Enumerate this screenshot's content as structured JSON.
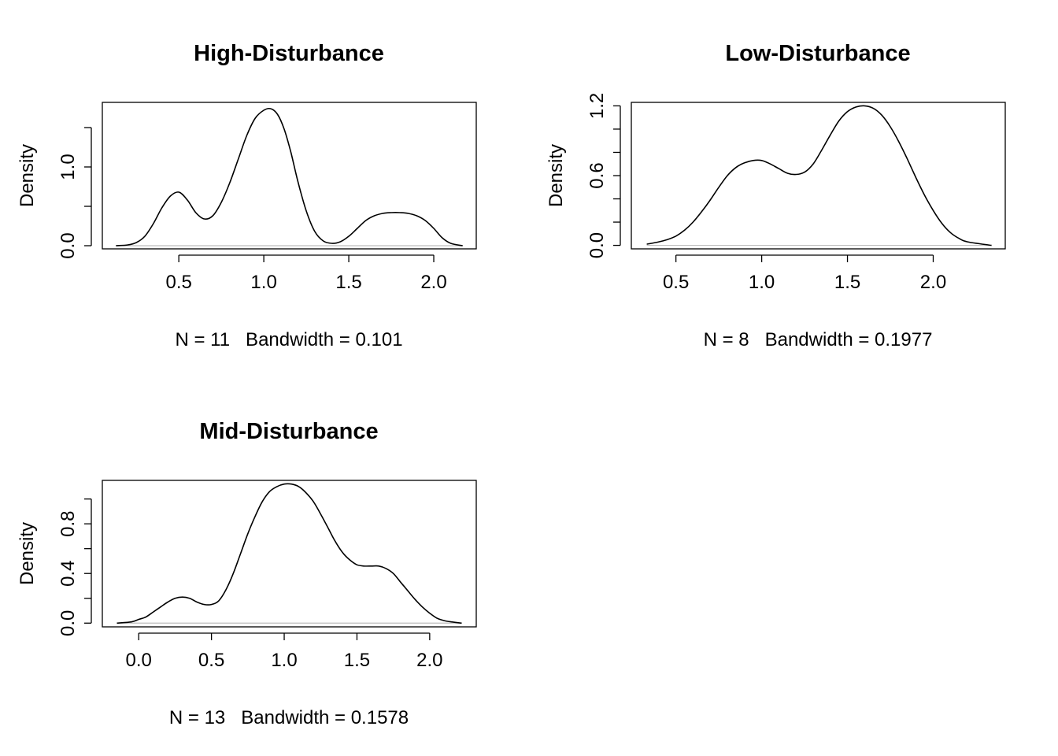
{
  "chart_data": [
    {
      "type": "line",
      "title": "High-Disturbance",
      "xlabel": "N = 11   Bandwidth = 0.101",
      "ylabel": "Density",
      "xlim": [
        0.05,
        2.25
      ],
      "ylim": [
        -0.04,
        1.82
      ],
      "x_ticks": [
        {
          "value": 0.5,
          "label": "0.5"
        },
        {
          "value": 1.0,
          "label": "1.0"
        },
        {
          "value": 1.5,
          "label": "1.5"
        },
        {
          "value": 2.0,
          "label": "2.0"
        }
      ],
      "y_ticks": [
        {
          "value": 0.0,
          "label": "0.0"
        },
        {
          "value": 0.5,
          "label": ""
        },
        {
          "value": 1.0,
          "label": "1.0"
        },
        {
          "value": 1.5,
          "label": ""
        }
      ],
      "x": [
        0.13,
        0.2,
        0.25,
        0.3,
        0.35,
        0.4,
        0.45,
        0.5,
        0.55,
        0.6,
        0.65,
        0.7,
        0.75,
        0.8,
        0.85,
        0.9,
        0.95,
        1.0,
        1.04,
        1.08,
        1.12,
        1.16,
        1.2,
        1.25,
        1.3,
        1.35,
        1.4,
        1.45,
        1.5,
        1.55,
        1.6,
        1.65,
        1.7,
        1.75,
        1.8,
        1.85,
        1.9,
        1.95,
        2.0,
        2.05,
        2.1,
        2.17
      ],
      "y": [
        0.0,
        0.01,
        0.04,
        0.12,
        0.28,
        0.48,
        0.63,
        0.68,
        0.58,
        0.42,
        0.34,
        0.38,
        0.55,
        0.8,
        1.1,
        1.4,
        1.62,
        1.72,
        1.74,
        1.67,
        1.48,
        1.18,
        0.82,
        0.44,
        0.18,
        0.06,
        0.03,
        0.05,
        0.12,
        0.22,
        0.32,
        0.38,
        0.41,
        0.42,
        0.42,
        0.41,
        0.38,
        0.32,
        0.22,
        0.1,
        0.03,
        0.0
      ]
    },
    {
      "type": "line",
      "title": "Low-Disturbance",
      "xlabel": "N = 8   Bandwidth = 0.1977",
      "ylabel": "Density",
      "xlim": [
        0.24,
        2.42
      ],
      "ylim": [
        -0.03,
        1.23
      ],
      "x_ticks": [
        {
          "value": 0.5,
          "label": "0.5"
        },
        {
          "value": 1.0,
          "label": "1.0"
        },
        {
          "value": 1.5,
          "label": "1.5"
        },
        {
          "value": 2.0,
          "label": "2.0"
        }
      ],
      "y_ticks": [
        {
          "value": 0.0,
          "label": "0.0"
        },
        {
          "value": 0.2,
          "label": ""
        },
        {
          "value": 0.4,
          "label": ""
        },
        {
          "value": 0.6,
          "label": "0.6"
        },
        {
          "value": 0.8,
          "label": ""
        },
        {
          "value": 1.0,
          "label": ""
        },
        {
          "value": 1.2,
          "label": "1.2"
        }
      ],
      "x": [
        0.33,
        0.4,
        0.45,
        0.5,
        0.55,
        0.6,
        0.65,
        0.7,
        0.75,
        0.8,
        0.85,
        0.9,
        0.95,
        1.0,
        1.05,
        1.1,
        1.15,
        1.2,
        1.25,
        1.3,
        1.35,
        1.4,
        1.45,
        1.5,
        1.55,
        1.6,
        1.65,
        1.7,
        1.75,
        1.8,
        1.85,
        1.9,
        1.95,
        2.0,
        2.05,
        2.1,
        2.15,
        2.2,
        2.34
      ],
      "y": [
        0.01,
        0.03,
        0.05,
        0.08,
        0.13,
        0.2,
        0.29,
        0.39,
        0.5,
        0.6,
        0.67,
        0.71,
        0.73,
        0.73,
        0.7,
        0.66,
        0.62,
        0.61,
        0.63,
        0.7,
        0.82,
        0.95,
        1.07,
        1.15,
        1.19,
        1.2,
        1.18,
        1.12,
        1.02,
        0.89,
        0.74,
        0.58,
        0.43,
        0.3,
        0.19,
        0.11,
        0.06,
        0.03,
        0.0
      ]
    },
    {
      "type": "line",
      "title": "Mid-Disturbance",
      "xlabel": "N = 13   Bandwidth = 0.1578",
      "ylabel": "Density",
      "xlim": [
        -0.25,
        2.32
      ],
      "ylim": [
        -0.03,
        1.15
      ],
      "x_ticks": [
        {
          "value": 0.0,
          "label": "0.0"
        },
        {
          "value": 0.5,
          "label": "0.5"
        },
        {
          "value": 1.0,
          "label": "1.0"
        },
        {
          "value": 1.5,
          "label": "1.5"
        },
        {
          "value": 2.0,
          "label": "2.0"
        }
      ],
      "y_ticks": [
        {
          "value": 0.0,
          "label": "0.0"
        },
        {
          "value": 0.2,
          "label": ""
        },
        {
          "value": 0.4,
          "label": "0.4"
        },
        {
          "value": 0.6,
          "label": ""
        },
        {
          "value": 0.8,
          "label": "0.8"
        },
        {
          "value": 1.0,
          "label": ""
        }
      ],
      "x": [
        -0.15,
        -0.05,
        0.0,
        0.05,
        0.1,
        0.15,
        0.2,
        0.25,
        0.3,
        0.35,
        0.4,
        0.45,
        0.5,
        0.55,
        0.6,
        0.65,
        0.7,
        0.75,
        0.8,
        0.85,
        0.9,
        0.95,
        1.0,
        1.05,
        1.1,
        1.15,
        1.2,
        1.25,
        1.3,
        1.35,
        1.4,
        1.45,
        1.5,
        1.55,
        1.6,
        1.65,
        1.7,
        1.75,
        1.8,
        1.85,
        1.9,
        1.95,
        2.0,
        2.05,
        2.1,
        2.15,
        2.22
      ],
      "y": [
        0.0,
        0.01,
        0.03,
        0.05,
        0.09,
        0.13,
        0.17,
        0.2,
        0.21,
        0.2,
        0.17,
        0.15,
        0.15,
        0.18,
        0.27,
        0.4,
        0.56,
        0.72,
        0.86,
        0.98,
        1.06,
        1.1,
        1.12,
        1.12,
        1.1,
        1.05,
        0.98,
        0.88,
        0.77,
        0.66,
        0.57,
        0.51,
        0.47,
        0.46,
        0.46,
        0.46,
        0.44,
        0.4,
        0.33,
        0.26,
        0.19,
        0.13,
        0.08,
        0.04,
        0.02,
        0.01,
        0.0
      ]
    }
  ]
}
